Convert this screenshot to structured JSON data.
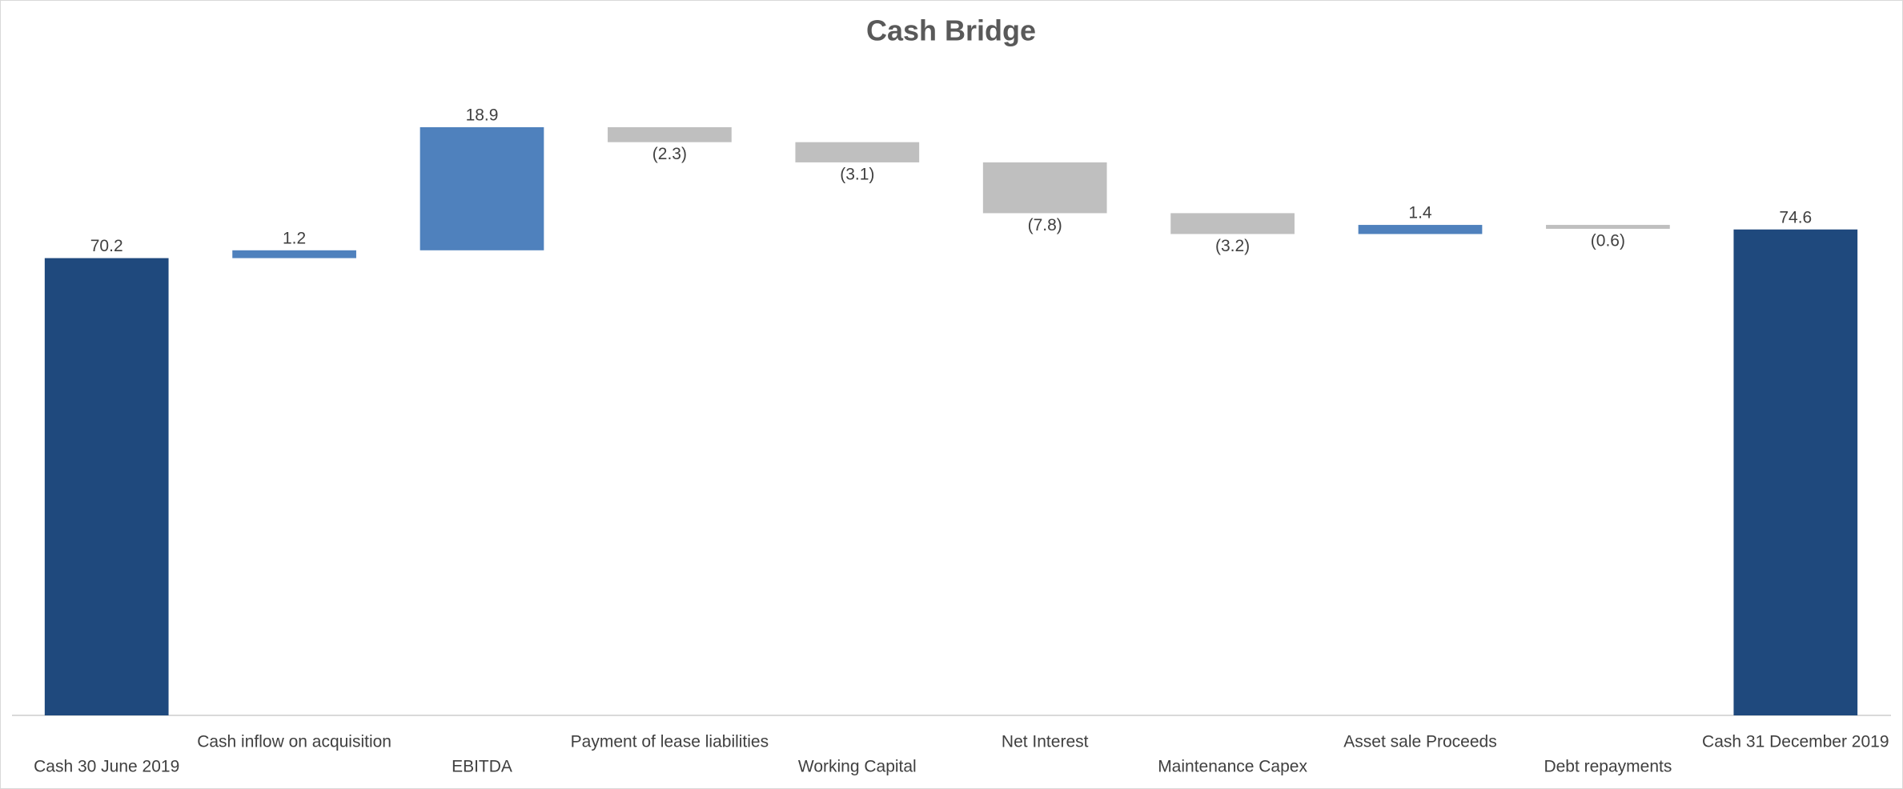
{
  "chart_data": {
    "type": "waterfall",
    "title": "Cash Bridge",
    "categories": [
      "Cash 30 June 2019",
      "Cash inflow on acquisition",
      "EBITDA",
      "Payment of lease liabilities",
      "Working Capital",
      "Net Interest",
      "Maintenance Capex",
      "Asset sale Proceeds",
      "Debt repayments",
      "Cash 31 December 2019"
    ],
    "values": [
      70.2,
      1.2,
      18.9,
      -2.3,
      -3.1,
      -7.8,
      -3.2,
      1.4,
      -0.6,
      74.6
    ],
    "value_labels": [
      "70.2",
      "1.2",
      "18.9",
      "(2.3)",
      "(3.1)",
      "(7.8)",
      "(3.2)",
      "1.4",
      "(0.6)",
      "74.6"
    ],
    "measure": [
      "total",
      "relative",
      "relative",
      "relative",
      "relative",
      "relative",
      "relative",
      "relative",
      "relative",
      "total"
    ],
    "colors": {
      "total": "#1f497d",
      "increase": "#4f81bd",
      "decrease": "#bfbfbf"
    },
    "ylim": [
      0,
      100
    ]
  }
}
